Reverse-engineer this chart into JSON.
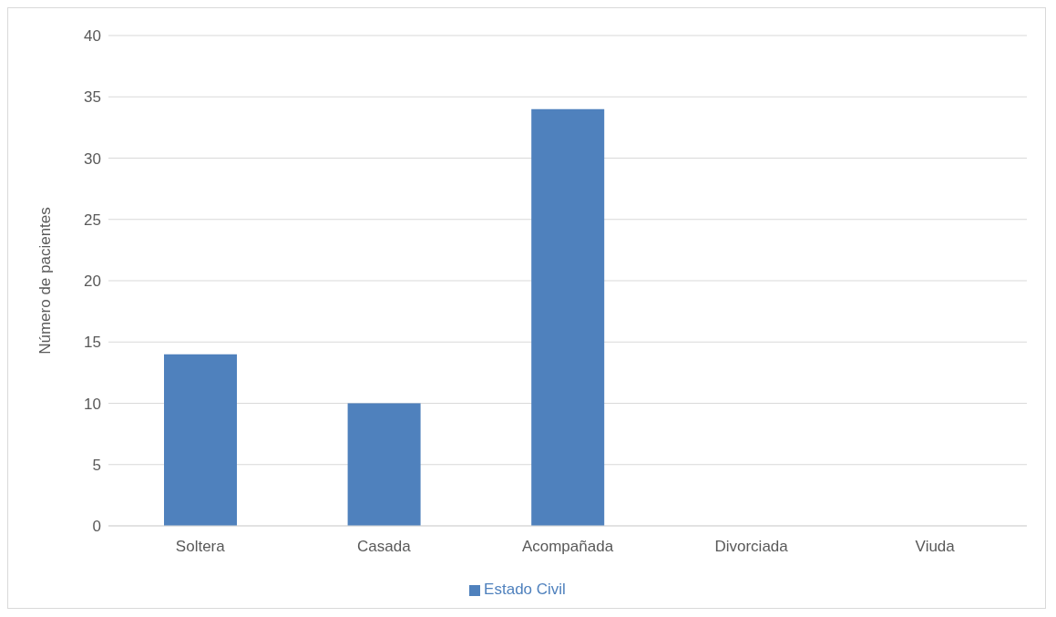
{
  "chart_data": {
    "type": "bar",
    "ylabel": "Número de pacientes",
    "categories": [
      "Soltera",
      "Casada",
      "Acompañada",
      "Divorciada",
      "Viuda"
    ],
    "series": [
      {
        "name": "Estado Civil",
        "color": "#4f81bd",
        "values": [
          14,
          10,
          34,
          0,
          0
        ]
      }
    ],
    "ylim": [
      0,
      40
    ],
    "yticks": [
      0,
      5,
      10,
      15,
      20,
      25,
      30,
      35,
      40
    ],
    "grid": "y",
    "legend": "bottom"
  }
}
